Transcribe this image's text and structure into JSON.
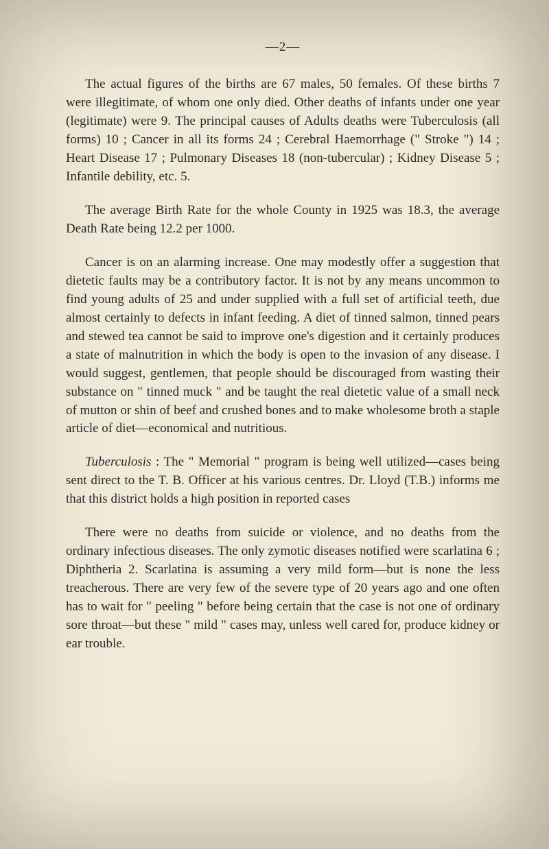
{
  "page_number": "—2—",
  "paragraphs": {
    "p1": "The actual figures of the births are 67 males, 50 females. Of these births 7 were illegitimate, of whom one only died. Other deaths of infants under one year (legitimate) were 9. The principal causes of Adults deaths were Tuberculosis (all forms) 10 ; Cancer in all its forms 24 ; Cerebral Haemorrhage (\" Stroke \") 14 ; Heart Disease 17 ; Pulmonary Diseases 18 (non-tubercular) ; Kidney Disease 5 ; Infantile debility, etc. 5.",
    "p2": "The average Birth Rate for the whole County in 1925 was 18.3, the average Death Rate being 12.2 per 1000.",
    "p3": "Cancer is on an alarming increase. One may modestly offer a suggestion that dietetic faults may be a contributory factor. It is not by any means uncommon to find young adults of 25 and under supplied with a full set of artificial teeth, due almost certainly to defects in infant feeding. A diet of tinned salmon, tinned pears and stewed tea cannot be said to improve one's digestion and it certainly produces a state of malnutrition in which the body is open to the invasion of any disease. I would suggest, gentlemen, that people should be discouraged from wasting their substance on \" tinned muck \" and be taught the real dietetic value of a small neck of mutton or shin of beef and crushed bones and to make wholesome broth a staple article of diet—economical and nutritious.",
    "p4_lead": "Tuberculosis",
    "p4_rest": " : The \" Memorial \" program is being well utilized—cases being sent direct to the T. B. Officer at his various centres. Dr. Lloyd (T.B.) informs me that this district holds a high position in reported cases",
    "p5": "There were no deaths from suicide or violence, and no deaths from the ordinary infectious diseases. The only zymotic diseases notified were scarlatina 6 ; Diphtheria 2. Scarlatina is assuming a very mild form—but is none the less treacherous. There are very few of the severe type of 20 years ago and one often has to wait for \" peeling \" before being certain that the case is not one of ordinary sore throat—but these \" mild \" cases may, unless well cared for, produce kidney or ear trouble."
  },
  "style": {
    "background_color": "#f0ead8",
    "text_color": "#2a2a28",
    "font_family": "Georgia, 'Times New Roman', serif",
    "body_font_size": 19,
    "line_height": 1.42
  }
}
